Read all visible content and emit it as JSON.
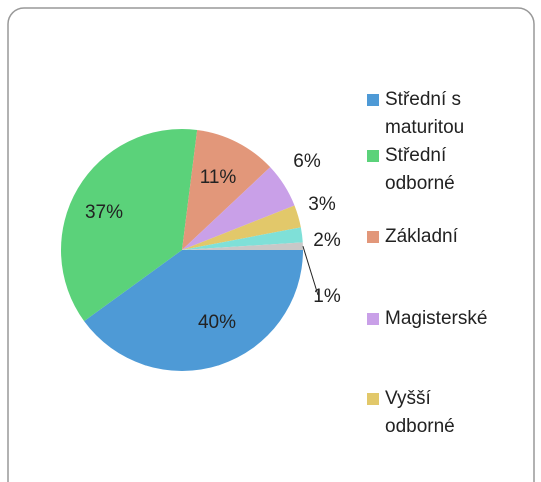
{
  "chart_data": {
    "type": "pie",
    "categories": [
      "Střední s maturitou",
      "Střední odborné",
      "Základní",
      "Magisterské",
      "Vyšší odborné",
      null,
      null
    ],
    "values": [
      40,
      37,
      11,
      6,
      3,
      2,
      1
    ],
    "value_labels": [
      "40%",
      "37%",
      "11%",
      "6%",
      "3%",
      "2%",
      "1%"
    ],
    "colors": [
      "#4e9ad6",
      "#5bd27a",
      "#e2977a",
      "#c9a0e8",
      "#e2c86a",
      "#7fe0d8",
      "#c8c8c8"
    ],
    "legend": "right"
  }
}
